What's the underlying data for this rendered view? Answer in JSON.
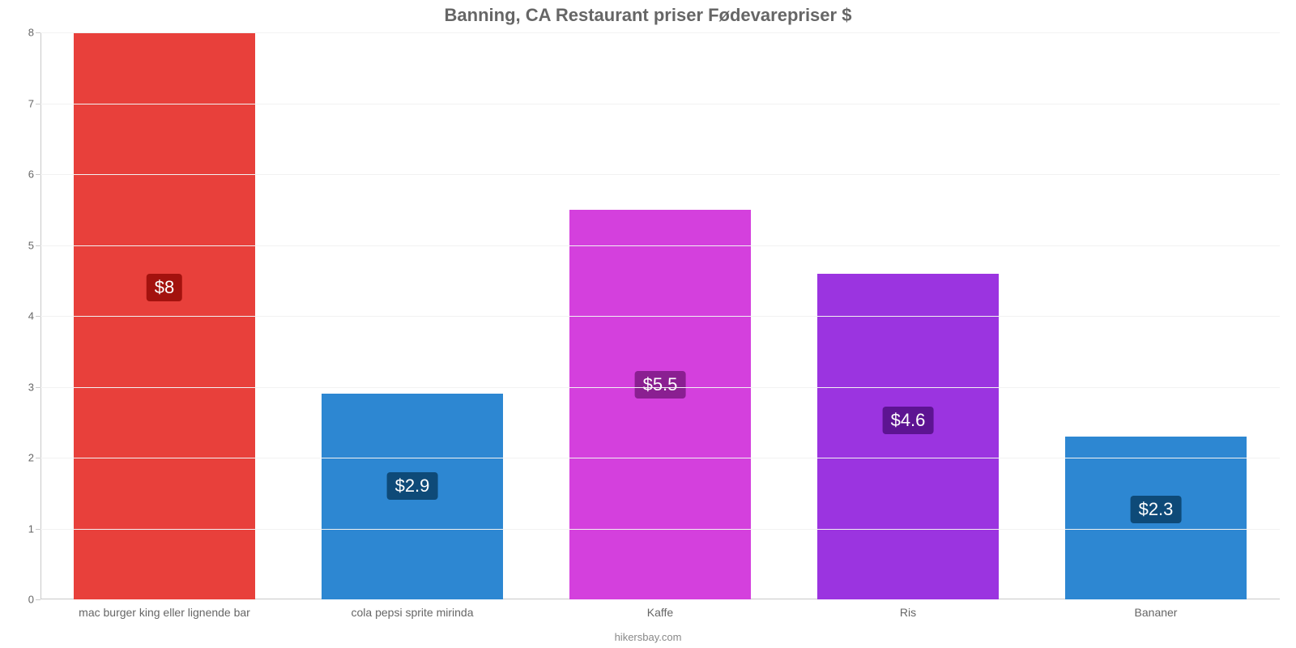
{
  "chart": {
    "type": "bar",
    "title": "Banning, CA Restaurant priser Fødevarepriser $",
    "title_fontsize": 22,
    "title_color": "#666666",
    "caption": "hikersbay.com",
    "caption_color": "#888888",
    "background_color": "#ffffff",
    "grid_color": "#f2f2f2",
    "axis_color": "#c9c9c9",
    "tick_color": "#666666",
    "tick_fontsize": 13,
    "xlabel_fontsize": 14,
    "value_label_fontsize": 22,
    "ylim": [
      0,
      8
    ],
    "ytick_step": 1,
    "bar_width": 0.73,
    "categories": [
      "mac burger king eller lignende bar",
      "cola pepsi sprite mirinda",
      "Kaffe",
      "Ris",
      "Bananer"
    ],
    "values": [
      8,
      2.9,
      5.5,
      4.6,
      2.3
    ],
    "value_labels": [
      "$8",
      "$2.9",
      "$5.5",
      "$4.6",
      "$2.3"
    ],
    "bar_colors": [
      "#e8403b",
      "#2d87d2",
      "#d440dd",
      "#9b34e0",
      "#2d87d2"
    ],
    "badge_colors": [
      "#a3120e",
      "#0e4a78",
      "#8a1f91",
      "#5d1492",
      "#0e4a78"
    ]
  }
}
